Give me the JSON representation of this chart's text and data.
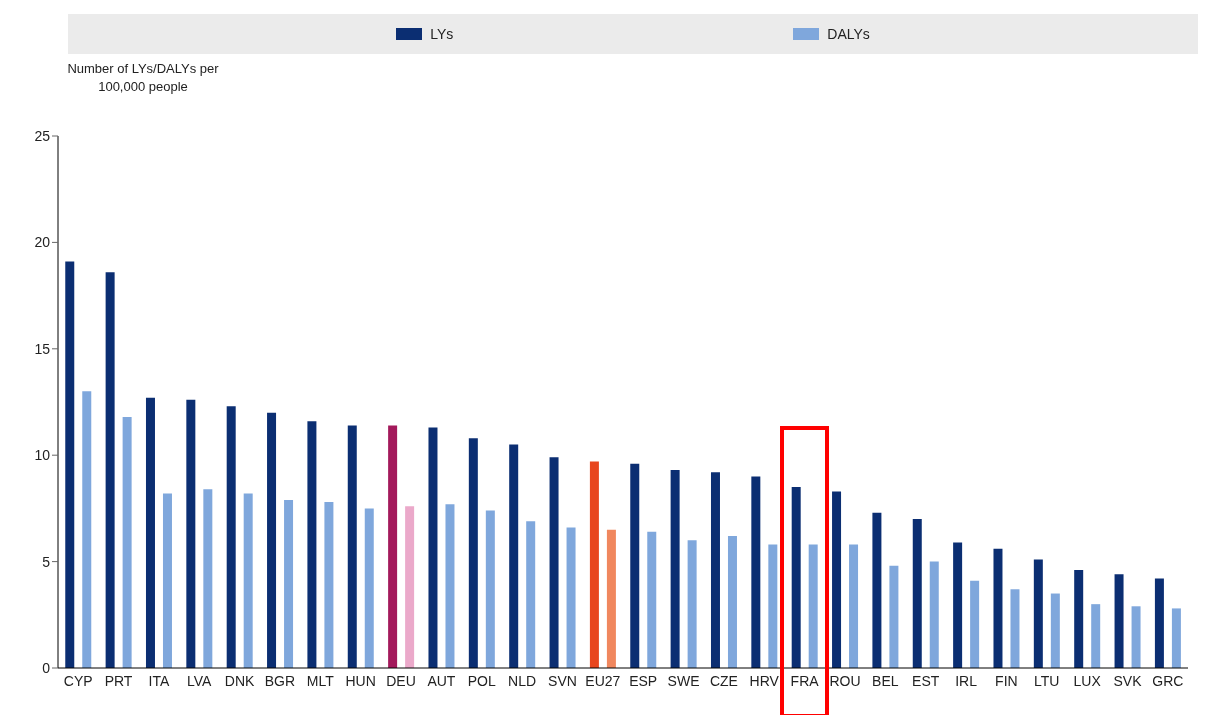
{
  "chart_data": {
    "type": "bar",
    "ylabel": "Number of LYs/DALYs per 100,000 people",
    "categories": [
      "CYP",
      "PRT",
      "ITA",
      "LVA",
      "DNK",
      "BGR",
      "MLT",
      "HUN",
      "DEU",
      "AUT",
      "POL",
      "NLD",
      "SVN",
      "EU27",
      "ESP",
      "SWE",
      "CZE",
      "HRV",
      "FRA",
      "ROU",
      "BEL",
      "EST",
      "IRL",
      "FIN",
      "LTU",
      "LUX",
      "SVK",
      "GRC"
    ],
    "series": [
      {
        "name": "LYs",
        "color": "#0b2e72",
        "colors": [
          "#0b2e72",
          "#0b2e72",
          "#0b2e72",
          "#0b2e72",
          "#0b2e72",
          "#0b2e72",
          "#0b2e72",
          "#0b2e72",
          "#a3195b",
          "#0b2e72",
          "#0b2e72",
          "#0b2e72",
          "#0b2e72",
          "#e8461e",
          "#0b2e72",
          "#0b2e72",
          "#0b2e72",
          "#0b2e72",
          "#0b2e72",
          "#0b2e72",
          "#0b2e72",
          "#0b2e72",
          "#0b2e72",
          "#0b2e72",
          "#0b2e72",
          "#0b2e72",
          "#0b2e72",
          "#0b2e72"
        ],
        "values": [
          19.1,
          18.6,
          12.7,
          12.6,
          12.3,
          12.0,
          11.6,
          11.4,
          11.4,
          11.3,
          10.8,
          10.5,
          9.9,
          9.7,
          9.6,
          9.3,
          9.2,
          9.0,
          8.5,
          8.3,
          7.3,
          7.0,
          5.9,
          5.6,
          5.1,
          4.6,
          4.4,
          4.2
        ]
      },
      {
        "name": "DALYs",
        "color": "#7fa7dc",
        "colors": [
          "#7fa7dc",
          "#7fa7dc",
          "#7fa7dc",
          "#7fa7dc",
          "#7fa7dc",
          "#7fa7dc",
          "#7fa7dc",
          "#7fa7dc",
          "#eba9ca",
          "#7fa7dc",
          "#7fa7dc",
          "#7fa7dc",
          "#7fa7dc",
          "#f0875e",
          "#7fa7dc",
          "#7fa7dc",
          "#7fa7dc",
          "#7fa7dc",
          "#7fa7dc",
          "#7fa7dc",
          "#7fa7dc",
          "#7fa7dc",
          "#7fa7dc",
          "#7fa7dc",
          "#7fa7dc",
          "#7fa7dc",
          "#7fa7dc",
          "#7fa7dc"
        ],
        "values": [
          13.0,
          11.8,
          8.2,
          8.4,
          8.2,
          7.9,
          7.8,
          7.5,
          7.6,
          7.7,
          7.4,
          6.9,
          6.6,
          6.5,
          6.4,
          6.0,
          6.2,
          5.8,
          5.8,
          5.8,
          4.8,
          5.0,
          4.1,
          3.7,
          3.5,
          3.0,
          2.9,
          2.8
        ]
      }
    ],
    "ylim": [
      0,
      25
    ],
    "yticks": [
      0,
      5,
      10,
      15,
      20,
      25
    ],
    "grid": false,
    "legend": "top"
  }
}
